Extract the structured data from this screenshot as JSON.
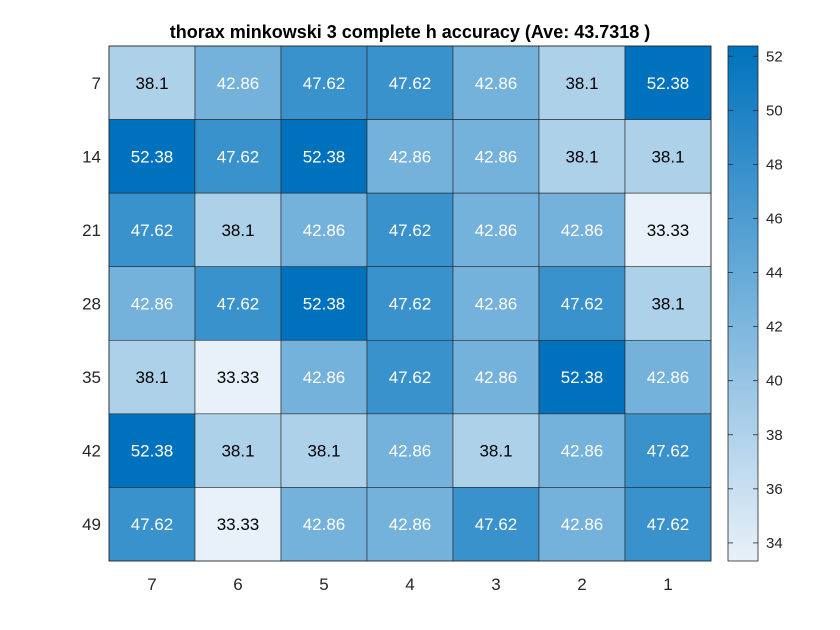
{
  "chart_data": {
    "type": "heatmap",
    "title": "thorax minkowski 3 complete h accuracy (Ave:  43.7318 )",
    "x_categories": [
      "7",
      "6",
      "5",
      "4",
      "3",
      "2",
      "1"
    ],
    "y_categories": [
      "7",
      "14",
      "21",
      "28",
      "35",
      "42",
      "49"
    ],
    "values": [
      [
        38.1,
        42.86,
        47.62,
        47.62,
        42.86,
        38.1,
        52.38
      ],
      [
        52.38,
        47.62,
        52.38,
        42.86,
        42.86,
        38.1,
        38.1
      ],
      [
        47.62,
        38.1,
        42.86,
        47.62,
        42.86,
        42.86,
        33.33
      ],
      [
        42.86,
        47.62,
        52.38,
        47.62,
        42.86,
        47.62,
        38.1
      ],
      [
        38.1,
        33.33,
        42.86,
        47.62,
        42.86,
        52.38,
        42.86
      ],
      [
        52.38,
        38.1,
        38.1,
        42.86,
        38.1,
        42.86,
        47.62
      ],
      [
        47.62,
        33.33,
        42.86,
        42.86,
        47.62,
        42.86,
        47.62
      ]
    ],
    "colorbar": {
      "min": 33.33,
      "max": 52.38,
      "ticks": [
        34,
        36,
        38,
        40,
        42,
        44,
        46,
        48,
        50,
        52
      ],
      "color_low": "#e8f1f9",
      "color_high": "#0072bd"
    },
    "grid": true,
    "legend": "colorbar-right"
  }
}
